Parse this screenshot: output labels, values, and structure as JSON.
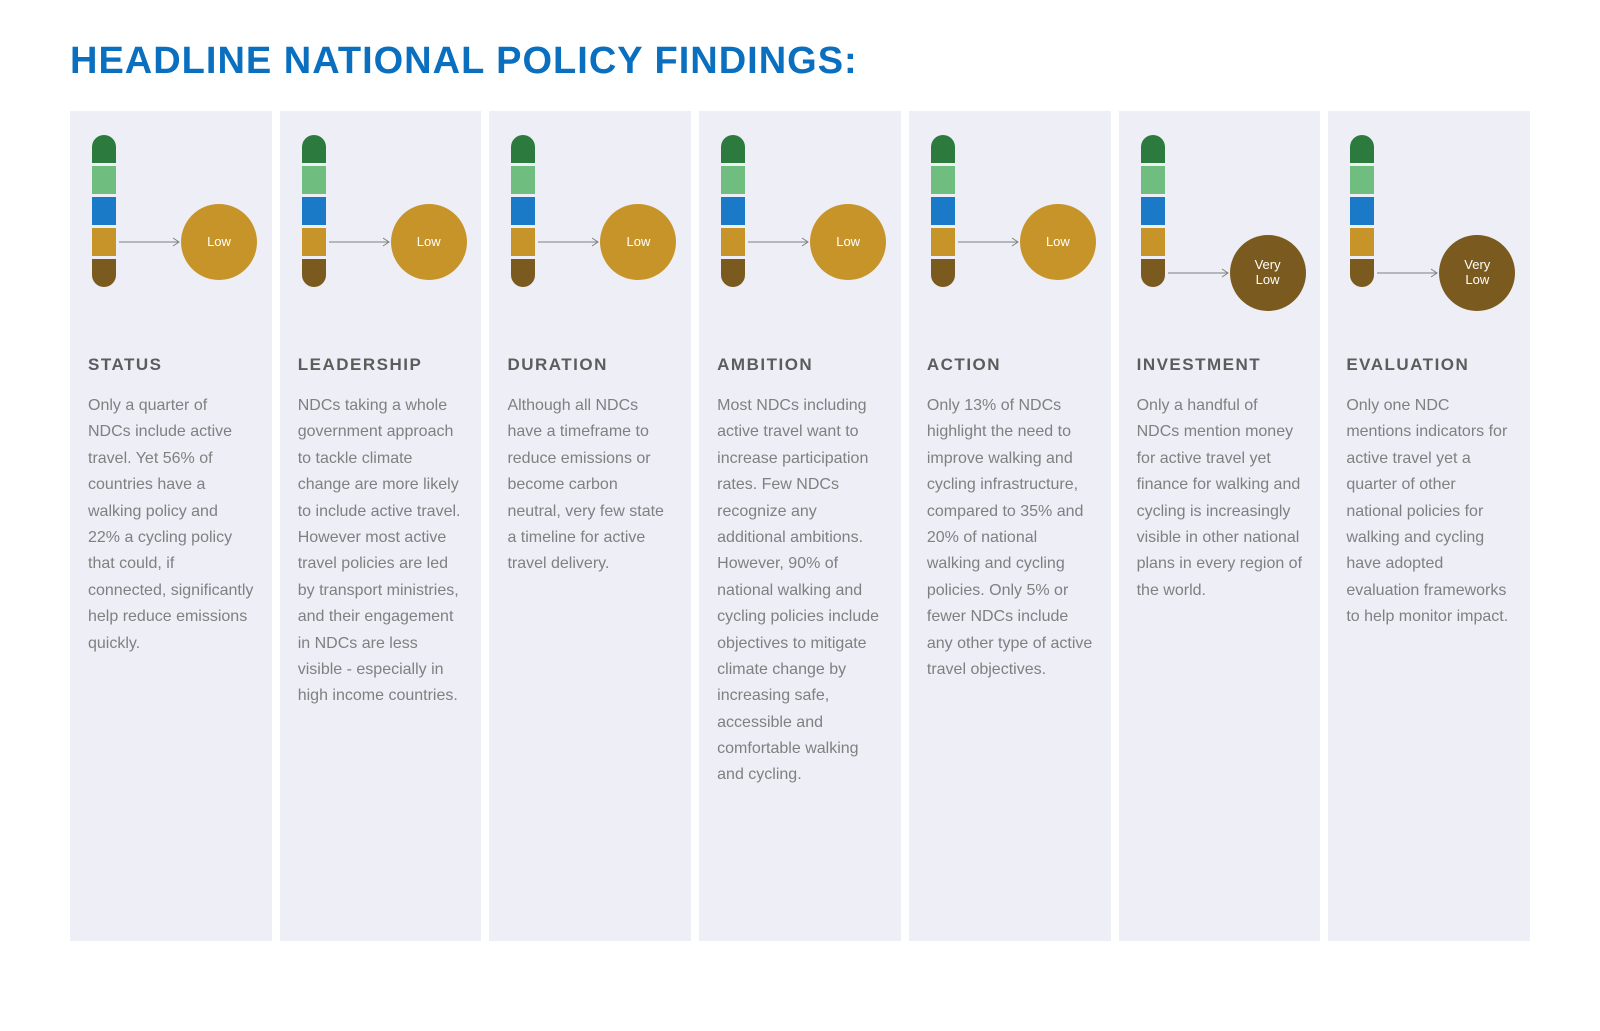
{
  "headline": {
    "text": "HEADLINE NATIONAL POLICY FINDINGS:",
    "color": "#0a6fbf",
    "fontsize": 38
  },
  "layout": {
    "card_background": "#edeef6",
    "card_title_color": "#5c5c5c",
    "card_body_color": "#808080",
    "pill_segment_height": 28,
    "pill_width": 24
  },
  "scale_colors": [
    "#2c7a3e",
    "#6fbd7f",
    "#1a7ac7",
    "#c79429",
    "#7a5a1e"
  ],
  "rating_styles": {
    "Low": {
      "badge_color": "#c79429",
      "segment_index": 3
    },
    "Very Low": {
      "badge_color": "#7a5a1e",
      "segment_index": 4
    }
  },
  "arrow": {
    "color": "#808080"
  },
  "cards": [
    {
      "title": "STATUS",
      "rating": "Low",
      "body": "Only a quarter of NDCs include active travel. Yet 56% of countries have a walking policy and 22% a cycling policy that could, if connected, significantly help reduce emissions quickly."
    },
    {
      "title": "LEADERSHIP",
      "rating": "Low",
      "body": "NDCs taking a whole government approach to tackle climate change are more likely to include active travel. However most active travel policies are led by transport ministries, and their engagement in NDCs are less visible - especially in high income countries."
    },
    {
      "title": "DURATION",
      "rating": "Low",
      "body": "Although all NDCs have a timeframe to reduce emissions or become carbon neutral, very few state a timeline for active travel delivery."
    },
    {
      "title": "AMBITION",
      "rating": "Low",
      "body": "Most NDCs including active travel want to increase participation rates. Few NDCs recognize any additional ambitions. However, 90% of national walking and cycling policies include objectives to mitigate climate change by increasing safe, accessible and comfortable walking and cycling."
    },
    {
      "title": "ACTION",
      "rating": "Low",
      "body": "Only 13% of NDCs highlight the need to improve walking and cycling infrastructure, compared to 35% and 20% of national walking and cycling policies. Only 5% or fewer NDCs include any other type of active travel objectives."
    },
    {
      "title": "INVESTMENT",
      "rating": "Very Low",
      "body": "Only a handful of NDCs mention money for active travel yet finance for walking and cycling is increasingly visible in other national plans in every region of the world."
    },
    {
      "title": "EVALUATION",
      "rating": "Very Low",
      "body": "Only one NDC mentions indicators for active travel yet a quarter of other national policies for walking and cycling have adopted evaluation frameworks to help monitor impact."
    }
  ]
}
